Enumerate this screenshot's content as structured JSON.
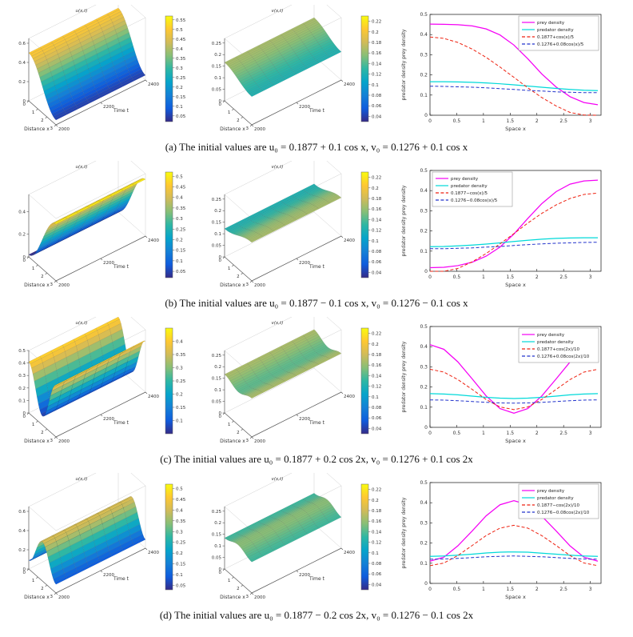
{
  "colors": {
    "prey": "#f500f5",
    "predator": "#00d9d9",
    "approx_u": "#ee2211",
    "approx_v": "#2233cc"
  },
  "chart_data": [
    {
      "row": "a",
      "caption": "(a) The initial values are u₀ = 0.1877 + 0.1 cos x, v₀ = 0.1276 + 0.1 cos x",
      "u_surface": {
        "type": "surface3d",
        "title": "u(x,t)",
        "xlabel": "Distance x",
        "tlabel": "Time t",
        "x_ticks": [
          0,
          1,
          2,
          3
        ],
        "t_ticks": [
          2000,
          2200,
          2400
        ],
        "z_ticks": [
          0,
          0.2,
          0.4,
          0.6
        ],
        "z_axis_max": 0.65,
        "shape": {
          "sign": 1,
          "freq": 1
        },
        "z_range": [
          0.05,
          0.5
        ],
        "c_range": [
          0.02,
          0.57
        ],
        "colorbar_ticks": [
          0.55,
          0.5,
          0.45,
          0.4,
          0.35,
          0.3,
          0.25,
          0.2,
          0.15,
          0.1,
          0.05
        ]
      },
      "v_surface": {
        "type": "surface3d",
        "title": "v(x,t)",
        "xlabel": "Distance x",
        "tlabel": "Time t",
        "x_ticks": [
          0,
          1,
          2,
          3
        ],
        "t_ticks": [
          2000,
          2200,
          2400
        ],
        "z_ticks": [
          0,
          0.05,
          0.1,
          0.15,
          0.2,
          0.25
        ],
        "z_axis_max": 0.27,
        "shape": {
          "sign": 1,
          "freq": 1
        },
        "z_range": [
          0.122,
          0.166
        ],
        "c_range": [
          0.03,
          0.23
        ],
        "colorbar_ticks": [
          0.22,
          0.2,
          0.18,
          0.16,
          0.14,
          0.12,
          0.1,
          0.08,
          0.06,
          0.04
        ]
      },
      "line_chart": {
        "type": "line",
        "xlabel": "Space x",
        "ylabel": "predator density prey density",
        "x_ticks": [
          0,
          0.5,
          1,
          1.5,
          2,
          2.5,
          3
        ],
        "y_ticks": [
          0,
          0.1,
          0.2,
          0.3,
          0.4,
          0.5
        ],
        "xlim": [
          0,
          3.2
        ],
        "ylim": [
          0,
          0.5
        ],
        "legend": "top-right",
        "x": [
          0,
          0.26,
          0.52,
          0.79,
          1.05,
          1.31,
          1.57,
          1.83,
          2.09,
          2.36,
          2.62,
          2.88,
          3.14
        ],
        "series": [
          {
            "name": "prey density",
            "color": "prey",
            "style": "solid",
            "values": [
              0.452,
              0.451,
              0.449,
              0.443,
              0.428,
              0.398,
              0.348,
              0.28,
              0.205,
              0.14,
              0.092,
              0.063,
              0.052
            ]
          },
          {
            "name": "predator density",
            "color": "predator",
            "style": "solid",
            "values": [
              0.166,
              0.166,
              0.165,
              0.163,
              0.16,
              0.156,
              0.151,
              0.145,
              0.139,
              0.133,
              0.128,
              0.124,
              0.122
            ]
          },
          {
            "name": "0.1877+cos(x)/5",
            "color": "approx_u",
            "style": "dashed",
            "values": [
              0.388,
              0.381,
              0.361,
              0.328,
              0.287,
              0.239,
              0.188,
              0.136,
              0.088,
              0.046,
              0.014,
              0.001,
              0.0
            ]
          },
          {
            "name": "0.1276+0.08cos(x)/5",
            "color": "approx_v",
            "style": "dashed",
            "values": [
              0.144,
              0.143,
              0.141,
              0.139,
              0.136,
              0.132,
              0.128,
              0.123,
              0.12,
              0.116,
              0.114,
              0.112,
              0.112
            ]
          }
        ]
      }
    },
    {
      "row": "b",
      "caption": "(b) The initial values are u₀ = 0.1877 − 0.1 cos x, v₀ = 0.1276 − 0.1 cos x",
      "u_surface": {
        "type": "surface3d",
        "title": "u(x,t)",
        "xlabel": "Distance x",
        "tlabel": "Time t",
        "x_ticks": [
          0,
          1,
          2,
          3
        ],
        "t_ticks": [
          2000,
          2200,
          2400
        ],
        "z_ticks": [
          0,
          0.2,
          0.4
        ],
        "z_axis_max": 0.55,
        "shape": {
          "sign": -1,
          "freq": 1
        },
        "z_range": [
          0.02,
          0.5
        ],
        "c_range": [
          0.02,
          0.52
        ],
        "colorbar_ticks": [
          0.5,
          0.45,
          0.4,
          0.35,
          0.3,
          0.25,
          0.2,
          0.15,
          0.1,
          0.05
        ]
      },
      "v_surface": {
        "type": "surface3d",
        "title": "v(x,t)",
        "xlabel": "Distance x",
        "tlabel": "Time t",
        "x_ticks": [
          0,
          1,
          2,
          3
        ],
        "t_ticks": [
          2000,
          2200,
          2400
        ],
        "z_ticks": [
          0,
          0.05,
          0.1,
          0.15,
          0.2,
          0.25
        ],
        "z_axis_max": 0.27,
        "shape": {
          "sign": -1,
          "freq": 1
        },
        "z_range": [
          0.122,
          0.166
        ],
        "c_range": [
          0.03,
          0.23
        ],
        "colorbar_ticks": [
          0.22,
          0.2,
          0.18,
          0.16,
          0.14,
          0.12,
          0.1,
          0.08,
          0.06,
          0.04
        ]
      },
      "line_chart": {
        "type": "line",
        "xlabel": "Space x",
        "ylabel": "predator density prey density",
        "x_ticks": [
          0,
          0.5,
          1,
          1.5,
          2,
          2.5,
          3
        ],
        "y_ticks": [
          0,
          0.1,
          0.2,
          0.3,
          0.4,
          0.5
        ],
        "xlim": [
          0,
          3.2
        ],
        "ylim": [
          0,
          0.5
        ],
        "legend": "top-left",
        "x": [
          0,
          0.26,
          0.52,
          0.79,
          1.05,
          1.31,
          1.57,
          1.83,
          2.09,
          2.36,
          2.62,
          2.88,
          3.14
        ],
        "series": [
          {
            "name": "prey density",
            "color": "prey",
            "style": "solid",
            "values": [
              0.018,
              0.02,
              0.028,
              0.045,
              0.075,
              0.12,
              0.185,
              0.262,
              0.335,
              0.395,
              0.432,
              0.448,
              0.452
            ]
          },
          {
            "name": "predator density",
            "color": "predator",
            "style": "solid",
            "values": [
              0.122,
              0.123,
              0.126,
              0.13,
              0.135,
              0.141,
              0.148,
              0.154,
              0.159,
              0.163,
              0.165,
              0.166,
              0.166
            ]
          },
          {
            "name": "0.1877−cos(x)/5",
            "color": "approx_u",
            "style": "dashed",
            "values": [
              0.0,
              0.0,
              0.014,
              0.047,
              0.088,
              0.136,
              0.187,
              0.239,
              0.287,
              0.329,
              0.361,
              0.381,
              0.388
            ]
          },
          {
            "name": "0.1276−0.08cos(x)/5",
            "color": "approx_v",
            "style": "dashed",
            "values": [
              0.112,
              0.112,
              0.114,
              0.116,
              0.12,
              0.123,
              0.128,
              0.132,
              0.136,
              0.139,
              0.141,
              0.143,
              0.144
            ]
          }
        ]
      }
    },
    {
      "row": "c",
      "caption": "(c) The initial values are u₀ = 0.1877 + 0.2 cos 2x, v₀ = 0.1276 + 0.1 cos 2x",
      "u_surface": {
        "type": "surface3d",
        "title": "u(x,t)",
        "xlabel": "Distance x",
        "tlabel": "Time t",
        "x_ticks": [
          0,
          1,
          2,
          3
        ],
        "t_ticks": [
          2000,
          2200,
          2400
        ],
        "z_ticks": [
          0,
          0.1,
          0.2,
          0.3,
          0.4,
          0.5
        ],
        "z_axis_max": 0.5,
        "shape": {
          "sign": 1,
          "freq": 2
        },
        "z_range": [
          0.07,
          0.41
        ],
        "c_range": [
          0.05,
          0.45
        ],
        "colorbar_ticks": [
          0.4,
          0.35,
          0.3,
          0.25,
          0.2,
          0.15,
          0.1
        ]
      },
      "v_surface": {
        "type": "surface3d",
        "title": "v(x,t)",
        "xlabel": "Distance x",
        "tlabel": "Time t",
        "x_ticks": [
          0,
          1,
          2,
          3
        ],
        "t_ticks": [
          2000,
          2200,
          2400
        ],
        "z_ticks": [
          0,
          0.05,
          0.1,
          0.15,
          0.2,
          0.25
        ],
        "z_axis_max": 0.27,
        "shape": {
          "sign": 1,
          "freq": 2
        },
        "z_range": [
          0.143,
          0.167
        ],
        "c_range": [
          0.03,
          0.23
        ],
        "colorbar_ticks": [
          0.22,
          0.2,
          0.18,
          0.16,
          0.14,
          0.12,
          0.1,
          0.08,
          0.06,
          0.04
        ]
      },
      "line_chart": {
        "type": "line",
        "xlabel": "Space x",
        "ylabel": "predator density prey density",
        "x_ticks": [
          0,
          0.5,
          1,
          1.5,
          2,
          2.5,
          3
        ],
        "y_ticks": [
          0,
          0.1,
          0.2,
          0.3,
          0.4,
          0.5
        ],
        "xlim": [
          0,
          3.2
        ],
        "ylim": [
          0,
          0.5
        ],
        "legend": "top-right",
        "x": [
          0,
          0.26,
          0.52,
          0.79,
          1.05,
          1.31,
          1.57,
          1.83,
          2.09,
          2.36,
          2.62,
          2.88,
          3.14
        ],
        "series": [
          {
            "name": "prey density",
            "color": "prey",
            "style": "solid",
            "values": [
              0.41,
              0.387,
              0.325,
              0.24,
              0.156,
              0.093,
              0.07,
              0.093,
              0.155,
              0.24,
              0.324,
              0.387,
              0.41
            ]
          },
          {
            "name": "predator density",
            "color": "predator",
            "style": "solid",
            "values": [
              0.167,
              0.165,
              0.161,
              0.155,
              0.149,
              0.145,
              0.143,
              0.145,
              0.149,
              0.155,
              0.161,
              0.165,
              0.167
            ]
          },
          {
            "name": "0.1877+cos(2x)/10",
            "color": "approx_u",
            "style": "dashed",
            "values": [
              0.288,
              0.274,
              0.237,
              0.188,
              0.138,
              0.101,
              0.088,
              0.101,
              0.138,
              0.188,
              0.237,
              0.274,
              0.288
            ]
          },
          {
            "name": "0.1276+0.08cos(2x)/10",
            "color": "approx_v",
            "style": "dashed",
            "values": [
              0.136,
              0.135,
              0.132,
              0.128,
              0.124,
              0.121,
              0.12,
              0.121,
              0.124,
              0.128,
              0.132,
              0.135,
              0.136
            ]
          }
        ]
      }
    },
    {
      "row": "d",
      "caption": "(d) The initial values are u₀ = 0.1877 − 0.2 cos 2x, v₀ = 0.1276 − 0.1 cos 2x",
      "u_surface": {
        "type": "surface3d",
        "title": "u(x,t)",
        "xlabel": "Distance x",
        "tlabel": "Time t",
        "x_ticks": [
          0,
          1,
          2,
          3
        ],
        "t_ticks": [
          2000,
          2200,
          2400
        ],
        "z_ticks": [
          0,
          0.2,
          0.4,
          0.6
        ],
        "z_axis_max": 0.65,
        "shape": {
          "sign": -1,
          "freq": 2
        },
        "z_range": [
          0.09,
          0.41
        ],
        "c_range": [
          0.03,
          0.52
        ],
        "colorbar_ticks": [
          0.5,
          0.45,
          0.4,
          0.35,
          0.3,
          0.25,
          0.2,
          0.15,
          0.1,
          0.05
        ]
      },
      "v_surface": {
        "type": "surface3d",
        "title": "v(x,t)",
        "xlabel": "Distance x",
        "tlabel": "Time t",
        "x_ticks": [
          0,
          1,
          2,
          3
        ],
        "t_ticks": [
          2000,
          2200,
          2400
        ],
        "z_ticks": [
          0,
          0.05,
          0.1,
          0.15,
          0.2,
          0.25
        ],
        "z_axis_max": 0.27,
        "shape": {
          "sign": -1,
          "freq": 2
        },
        "z_range": [
          0.134,
          0.156
        ],
        "c_range": [
          0.03,
          0.23
        ],
        "colorbar_ticks": [
          0.22,
          0.2,
          0.18,
          0.16,
          0.14,
          0.12,
          0.1,
          0.08,
          0.06,
          0.04
        ]
      },
      "line_chart": {
        "type": "line",
        "xlabel": "Space x",
        "ylabel": "predator density prey density",
        "x_ticks": [
          0,
          0.5,
          1,
          1.5,
          2,
          2.5,
          3
        ],
        "y_ticks": [
          0,
          0.1,
          0.2,
          0.3,
          0.4,
          0.5
        ],
        "xlim": [
          0,
          3.2
        ],
        "ylim": [
          0,
          0.5
        ],
        "legend": "top-right",
        "x": [
          0,
          0.26,
          0.52,
          0.79,
          1.05,
          1.31,
          1.57,
          1.83,
          2.09,
          2.36,
          2.62,
          2.88,
          3.14
        ],
        "series": [
          {
            "name": "prey density",
            "color": "prey",
            "style": "solid",
            "values": [
              0.11,
              0.13,
              0.186,
              0.26,
              0.335,
              0.39,
              0.41,
              0.39,
              0.334,
              0.26,
              0.186,
              0.13,
              0.11
            ]
          },
          {
            "name": "predator density",
            "color": "predator",
            "style": "solid",
            "values": [
              0.134,
              0.136,
              0.14,
              0.145,
              0.151,
              0.155,
              0.156,
              0.155,
              0.15,
              0.145,
              0.14,
              0.136,
              0.134
            ]
          },
          {
            "name": "0.1877−cos(2x)/10",
            "color": "approx_u",
            "style": "dashed",
            "values": [
              0.088,
              0.101,
              0.138,
              0.188,
              0.237,
              0.274,
              0.288,
              0.274,
              0.237,
              0.188,
              0.138,
              0.101,
              0.088
            ]
          },
          {
            "name": "0.1276−0.08cos(2x)/10",
            "color": "approx_v",
            "style": "dashed",
            "values": [
              0.12,
              0.121,
              0.124,
              0.128,
              0.132,
              0.134,
              0.136,
              0.134,
              0.132,
              0.128,
              0.124,
              0.121,
              0.12
            ]
          }
        ]
      }
    }
  ]
}
